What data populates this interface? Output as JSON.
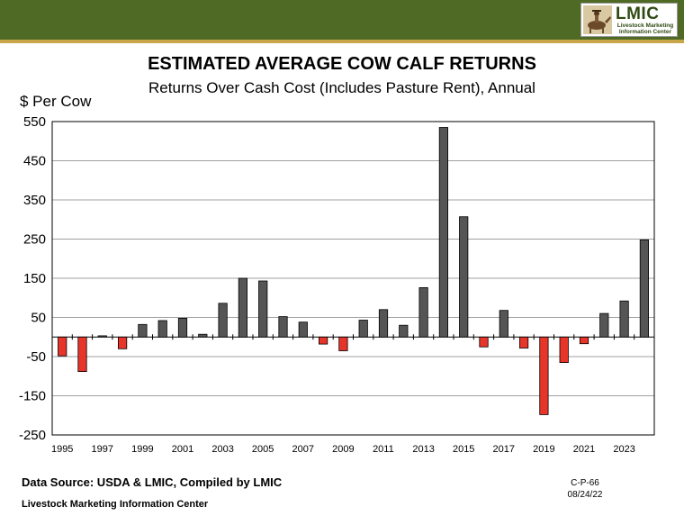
{
  "header": {
    "logo": {
      "name": "LMIC",
      "line1": "Livestock Marketing",
      "line2": "Information Center"
    }
  },
  "chart_data": {
    "type": "bar",
    "title": "ESTIMATED AVERAGE COW CALF RETURNS",
    "subtitle": "Returns Over Cash Cost (Includes Pasture Rent), Annual",
    "ylabel": "$ Per Cow",
    "ylim": [
      -250,
      550
    ],
    "yticks": [
      550,
      450,
      350,
      250,
      150,
      50,
      -50,
      -150,
      -250
    ],
    "xtick_labels": [
      "1995",
      "1997",
      "1999",
      "2001",
      "2003",
      "2005",
      "2007",
      "2009",
      "2011",
      "2013",
      "2015",
      "2017",
      "2019",
      "2021",
      "2023"
    ],
    "grid": "horizontal",
    "colors": {
      "positive": "#555555",
      "negative": "#e8352a"
    },
    "categories": [
      1995,
      1996,
      1997,
      1998,
      1999,
      2000,
      2001,
      2002,
      2003,
      2004,
      2005,
      2006,
      2007,
      2008,
      2009,
      2010,
      2011,
      2012,
      2013,
      2014,
      2015,
      2016,
      2017,
      2018,
      2019,
      2020,
      2021,
      2022,
      2023,
      2024
    ],
    "values": [
      -48,
      -88,
      3,
      -30,
      32,
      42,
      48,
      7,
      86,
      150,
      143,
      52,
      38,
      -18,
      -35,
      43,
      70,
      30,
      126,
      535,
      307,
      -25,
      68,
      -28,
      -198,
      -65,
      -17,
      60,
      92,
      248
    ]
  },
  "footer": {
    "source": "Data Source:  USDA & LMIC, Compiled by LMIC",
    "org": "Livestock Marketing Information Center",
    "code": "C-P-66",
    "date": "08/24/22"
  }
}
